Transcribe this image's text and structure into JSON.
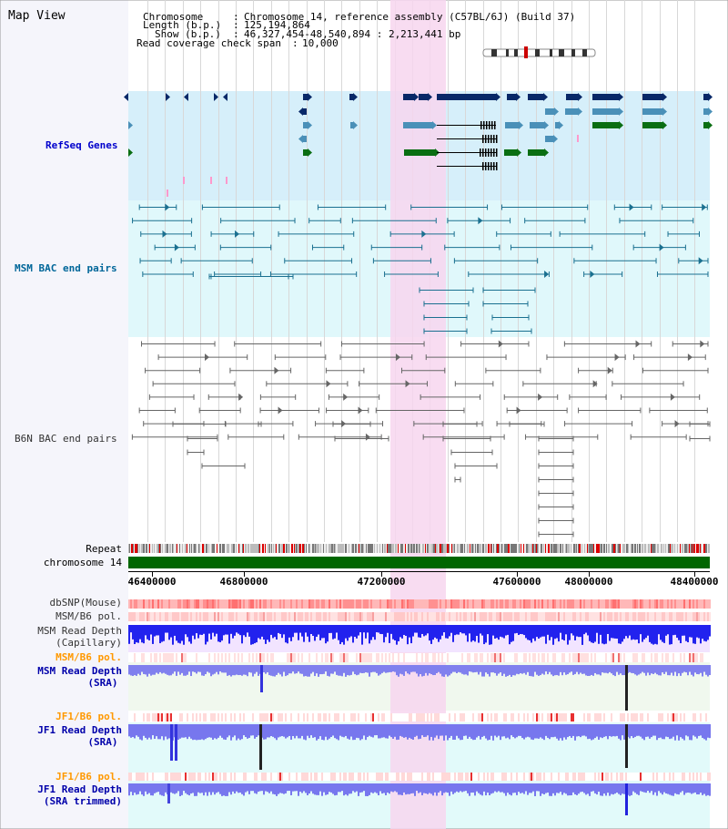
{
  "title": "Map View",
  "header": {
    "chromosome_label": "Chromosome",
    "chromosome_value": "Chromosome 14, reference assembly (C57BL/6J) (Build 37)",
    "length_label": "Length (b.p.)",
    "length_value": "125,194,864",
    "show_label": "Show (b.p.)",
    "show_value": "46,327,454-48,540,894 : 2,213,441 bp",
    "coverage_label": "Read coverage check span",
    "coverage_value": "10,000"
  },
  "tracks": {
    "refseq": "RefSeq Genes",
    "msm_bac": "MSM BAC end pairs",
    "b6n_bac": "B6N BAC end pairs",
    "repeat": "Repeat",
    "chromosome": "chromosome 14",
    "dbsnp": "dbSNP(Mouse)",
    "msm_b6_pol_1": "MSM/B6 pol.",
    "msm_read_depth_cap_1": "MSM Read Depth",
    "msm_read_depth_cap_2": "(Capillary)",
    "msm_b6_pol_2": "MSM/B6 pol.",
    "msm_read_depth_sra_1": "MSM Read Depth",
    "msm_read_depth_sra_2": "(SRA)",
    "jf1_b6_pol_1": "JF1/B6 pol.",
    "jf1_read_depth_sra_1": "JF1 Read Depth",
    "jf1_read_depth_sra_2": "(SRA)",
    "jf1_b6_pol_2": "JF1/B6 pol.",
    "jf1_read_depth_trim_1": "JF1 Read Depth",
    "jf1_read_depth_trim_2": "(SRA trimmed)"
  },
  "axis": {
    "ticks": [
      "46400000",
      "46800000",
      "47200000",
      "47600000",
      "48000000",
      "48400000"
    ]
  },
  "colors": {
    "highlight": "#f7d6ef",
    "refseq_bg": "#d6effa",
    "msm_bac_bg": "#e0f8fb",
    "navy": "#082868",
    "steel": "#4a90b8",
    "green": "#0a6e12",
    "teal": "#1a7090",
    "gray": "#666666",
    "chromosome": "#006600"
  }
}
